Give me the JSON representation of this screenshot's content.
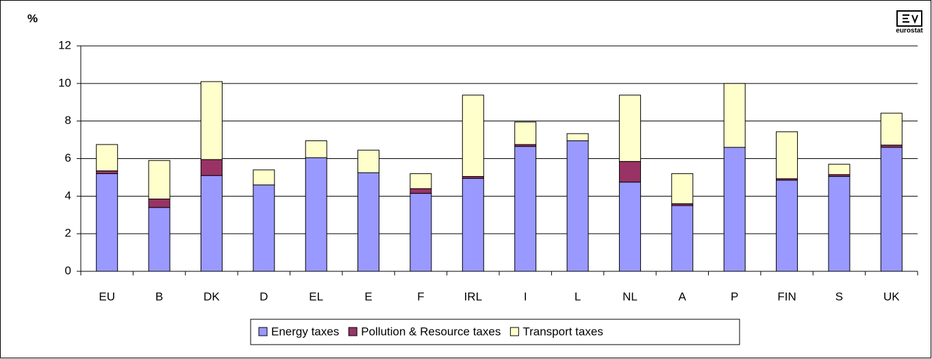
{
  "chart_data": {
    "type": "stacked_bar",
    "y_label": "%",
    "logo": "eurostat",
    "categories": [
      "EU",
      "B",
      "DK",
      "D",
      "EL",
      "E",
      "F",
      "IRL",
      "I",
      "L",
      "NL",
      "A",
      "P",
      "FIN",
      "S",
      "UK"
    ],
    "series": [
      {
        "name": "Energy taxes",
        "color": "#9999ff",
        "values": [
          5.2,
          3.4,
          5.1,
          4.6,
          6.05,
          5.25,
          4.15,
          4.95,
          6.65,
          6.95,
          4.75,
          3.5,
          6.6,
          4.85,
          5.05,
          6.6
        ]
      },
      {
        "name": "Pollution & Resource taxes",
        "color": "#993366",
        "values": [
          0.15,
          0.45,
          0.85,
          0,
          0,
          0,
          0.25,
          0.1,
          0.1,
          0,
          1.1,
          0.1,
          0,
          0.08,
          0.1,
          0.12
        ]
      },
      {
        "name": "Transport taxes",
        "color": "#ffffcc",
        "values": [
          1.4,
          2.05,
          4.15,
          0.8,
          0.9,
          1.2,
          0.8,
          4.33,
          1.2,
          0.38,
          3.53,
          1.6,
          3.4,
          2.5,
          0.55,
          1.7
        ]
      }
    ],
    "ylim": [
      0,
      12
    ],
    "yticks": [
      0,
      2,
      4,
      6,
      8,
      10,
      12
    ],
    "grid": true,
    "legend": "bottom"
  }
}
